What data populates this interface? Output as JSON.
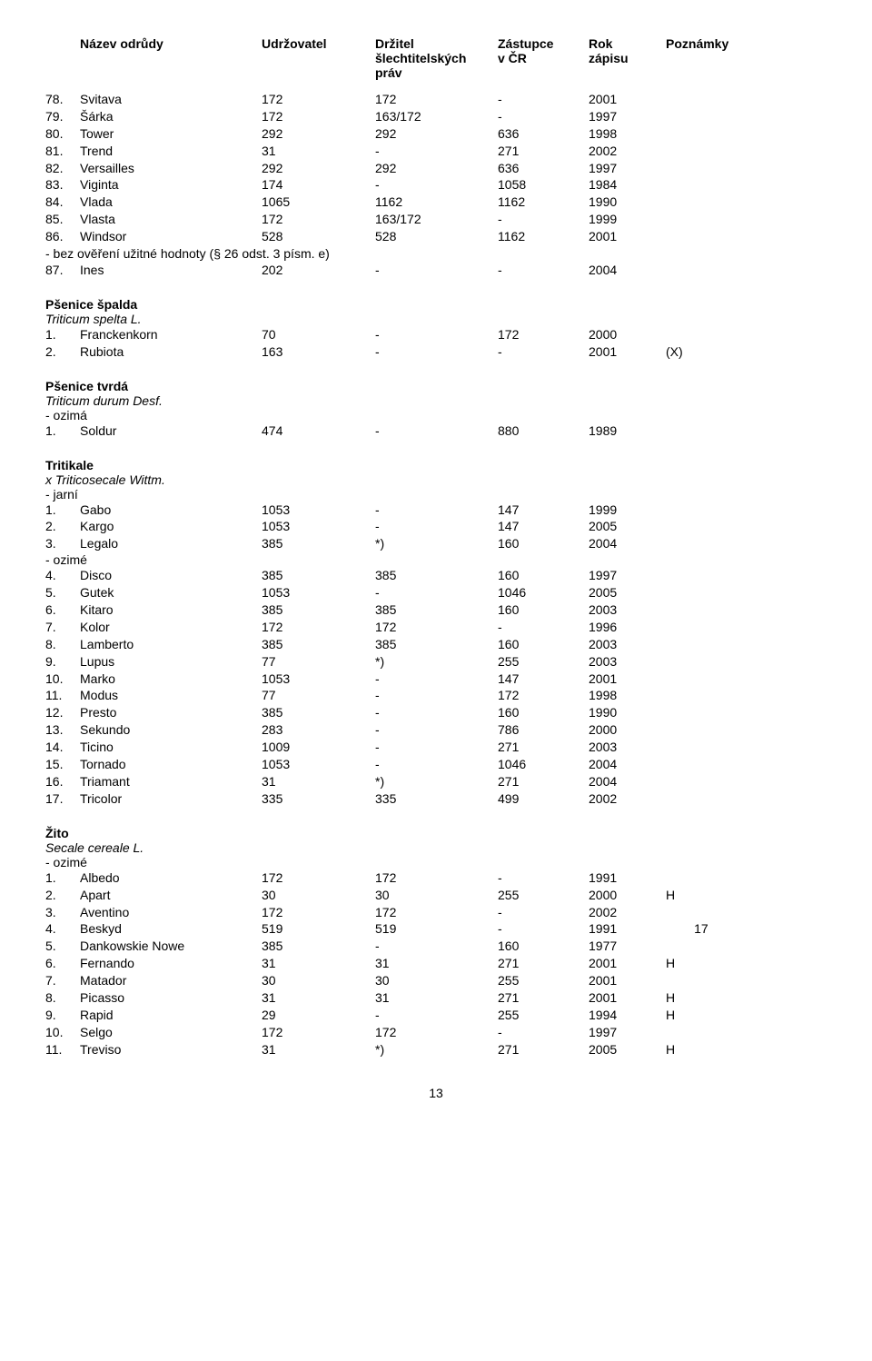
{
  "headers": {
    "nazev": "Název odrůdy",
    "udrz": "Udržovatel",
    "drz1": "Držitel",
    "drz2": "šlechtitelských",
    "drz3": "práv",
    "zast1": "Zástupce",
    "zast2": "v ČR",
    "rok1": "Rok",
    "rok2": "zápisu",
    "pozn": "Poznámky"
  },
  "topRows": [
    {
      "n": "78.",
      "name": "Svitava",
      "u": "172",
      "d": "172",
      "z": "-",
      "r": "2001",
      "p": ""
    },
    {
      "n": "79.",
      "name": "Šárka",
      "u": "172",
      "d": "163/172",
      "z": "-",
      "r": "1997",
      "p": ""
    },
    {
      "n": "80.",
      "name": "Tower",
      "u": "292",
      "d": "292",
      "z": "636",
      "r": "1998",
      "p": ""
    },
    {
      "n": "81.",
      "name": "Trend",
      "u": "31",
      "d": "-",
      "z": "271",
      "r": "2002",
      "p": ""
    },
    {
      "n": "82.",
      "name": "Versailles",
      "u": "292",
      "d": "292",
      "z": "636",
      "r": "1997",
      "p": ""
    },
    {
      "n": "83.",
      "name": "Viginta",
      "u": "174",
      "d": "-",
      "z": "1058",
      "r": "1984",
      "p": ""
    },
    {
      "n": "84.",
      "name": "Vlada",
      "u": "1065",
      "d": "1162",
      "z": "1162",
      "r": "1990",
      "p": ""
    },
    {
      "n": "85.",
      "name": "Vlasta",
      "u": "172",
      "d": "163/172",
      "z": "-",
      "r": "1999",
      "p": ""
    },
    {
      "n": "86.",
      "name": "Windsor",
      "u": "528",
      "d": "528",
      "z": "1162",
      "r": "2001",
      "p": ""
    }
  ],
  "noteLine": "- bez ověření užitné hodnoty (§ 26 odst. 3 písm. e)",
  "topAfterNote": [
    {
      "n": "87.",
      "name": "Ines",
      "u": "202",
      "d": "-",
      "z": "-",
      "r": "2004",
      "p": ""
    }
  ],
  "sections": [
    {
      "title": "Pšenice špalda",
      "sub": "Triticum spelta L.",
      "plain": "",
      "rows": [
        {
          "n": "1.",
          "name": "Franckenkorn",
          "u": "70",
          "d": "-",
          "z": "172",
          "r": "2000",
          "p": ""
        },
        {
          "n": "2.",
          "name": "Rubiota",
          "u": "163",
          "d": "-",
          "z": "-",
          "r": "2001",
          "p": "(X)"
        }
      ]
    },
    {
      "title": "Pšenice tvrdá",
      "sub": "Triticum durum Desf.",
      "plain": "- ozimá",
      "rows": [
        {
          "n": "1.",
          "name": "Soldur",
          "u": "474",
          "d": "-",
          "z": "880",
          "r": "1989",
          "p": ""
        }
      ]
    },
    {
      "title": "Tritikale",
      "sub": "x Triticosecale Wittm.",
      "plain": "- jarní",
      "rows": [
        {
          "n": "1.",
          "name": "Gabo",
          "u": "1053",
          "d": "-",
          "z": "147",
          "r": "1999",
          "p": ""
        },
        {
          "n": "2.",
          "name": "Kargo",
          "u": "1053",
          "d": "-",
          "z": "147",
          "r": "2005",
          "p": ""
        },
        {
          "n": "3.",
          "name": "Legalo",
          "u": "385",
          "d": "*)",
          "z": "160",
          "r": "2004",
          "p": ""
        }
      ],
      "plain2": "- ozimé",
      "rows2": [
        {
          "n": "4.",
          "name": "Disco",
          "u": "385",
          "d": "385",
          "z": "160",
          "r": "1997",
          "p": ""
        },
        {
          "n": "5.",
          "name": "Gutek",
          "u": "1053",
          "d": "-",
          "z": "1046",
          "r": "2005",
          "p": ""
        },
        {
          "n": "6.",
          "name": "Kitaro",
          "u": "385",
          "d": "385",
          "z": "160",
          "r": "2003",
          "p": ""
        },
        {
          "n": "7.",
          "name": "Kolor",
          "u": "172",
          "d": "172",
          "z": "-",
          "r": "1996",
          "p": ""
        },
        {
          "n": "8.",
          "name": "Lamberto",
          "u": "385",
          "d": "385",
          "z": "160",
          "r": "2003",
          "p": ""
        },
        {
          "n": "9.",
          "name": "Lupus",
          "u": "77",
          "d": "*)",
          "z": "255",
          "r": "2003",
          "p": ""
        },
        {
          "n": "10.",
          "name": "Marko",
          "u": "1053",
          "d": "-",
          "z": "147",
          "r": "2001",
          "p": ""
        },
        {
          "n": "11.",
          "name": "Modus",
          "u": "77",
          "d": "-",
          "z": "172",
          "r": "1998",
          "p": ""
        },
        {
          "n": "12.",
          "name": "Presto",
          "u": "385",
          "d": "-",
          "z": "160",
          "r": "1990",
          "p": ""
        },
        {
          "n": "13.",
          "name": "Sekundo",
          "u": "283",
          "d": "-",
          "z": "786",
          "r": "2000",
          "p": ""
        },
        {
          "n": "14.",
          "name": "Ticino",
          "u": "1009",
          "d": "-",
          "z": "271",
          "r": "2003",
          "p": ""
        },
        {
          "n": "15.",
          "name": "Tornado",
          "u": "1053",
          "d": "-",
          "z": "1046",
          "r": "2004",
          "p": ""
        },
        {
          "n": "16.",
          "name": "Triamant",
          "u": "31",
          "d": "*)",
          "z": "271",
          "r": "2004",
          "p": ""
        },
        {
          "n": "17.",
          "name": "Tricolor",
          "u": "335",
          "d": "335",
          "z": "499",
          "r": "2002",
          "p": ""
        }
      ]
    },
    {
      "title": "Žito",
      "sub": "Secale cereale L.",
      "plain": "- ozimé",
      "rows": [
        {
          "n": "1.",
          "name": "Albedo",
          "u": "172",
          "d": "172",
          "z": "-",
          "r": "1991",
          "p": ""
        },
        {
          "n": "2.",
          "name": "Apart",
          "u": "30",
          "d": "30",
          "z": "255",
          "r": "2000",
          "p": "H"
        },
        {
          "n": "3.",
          "name": "Aventino",
          "u": "172",
          "d": "172",
          "z": "-",
          "r": "2002",
          "p": ""
        },
        {
          "n": "4.",
          "name": "Beskyd",
          "u": "519",
          "d": "519",
          "z": "-",
          "r": "1991",
          "p": "        17"
        },
        {
          "n": "5.",
          "name": "Dankowskie Nowe",
          "u": "385",
          "d": "-",
          "z": "160",
          "r": "1977",
          "p": ""
        },
        {
          "n": "6.",
          "name": "Fernando",
          "u": "31",
          "d": "31",
          "z": "271",
          "r": "2001",
          "p": "H"
        },
        {
          "n": "7.",
          "name": "Matador",
          "u": "30",
          "d": "30",
          "z": "255",
          "r": "2001",
          "p": ""
        },
        {
          "n": "8.",
          "name": "Picasso",
          "u": "31",
          "d": "31",
          "z": "271",
          "r": "2001",
          "p": "H"
        },
        {
          "n": "9.",
          "name": "Rapid",
          "u": "29",
          "d": "-",
          "z": "255",
          "r": "1994",
          "p": "H"
        },
        {
          "n": "10.",
          "name": "Selgo",
          "u": "172",
          "d": "172",
          "z": "-",
          "r": "1997",
          "p": ""
        },
        {
          "n": "11.",
          "name": "Treviso",
          "u": "31",
          "d": "*)",
          "z": "271",
          "r": "2005",
          "p": "H"
        }
      ]
    }
  ],
  "pageNumber": "13"
}
